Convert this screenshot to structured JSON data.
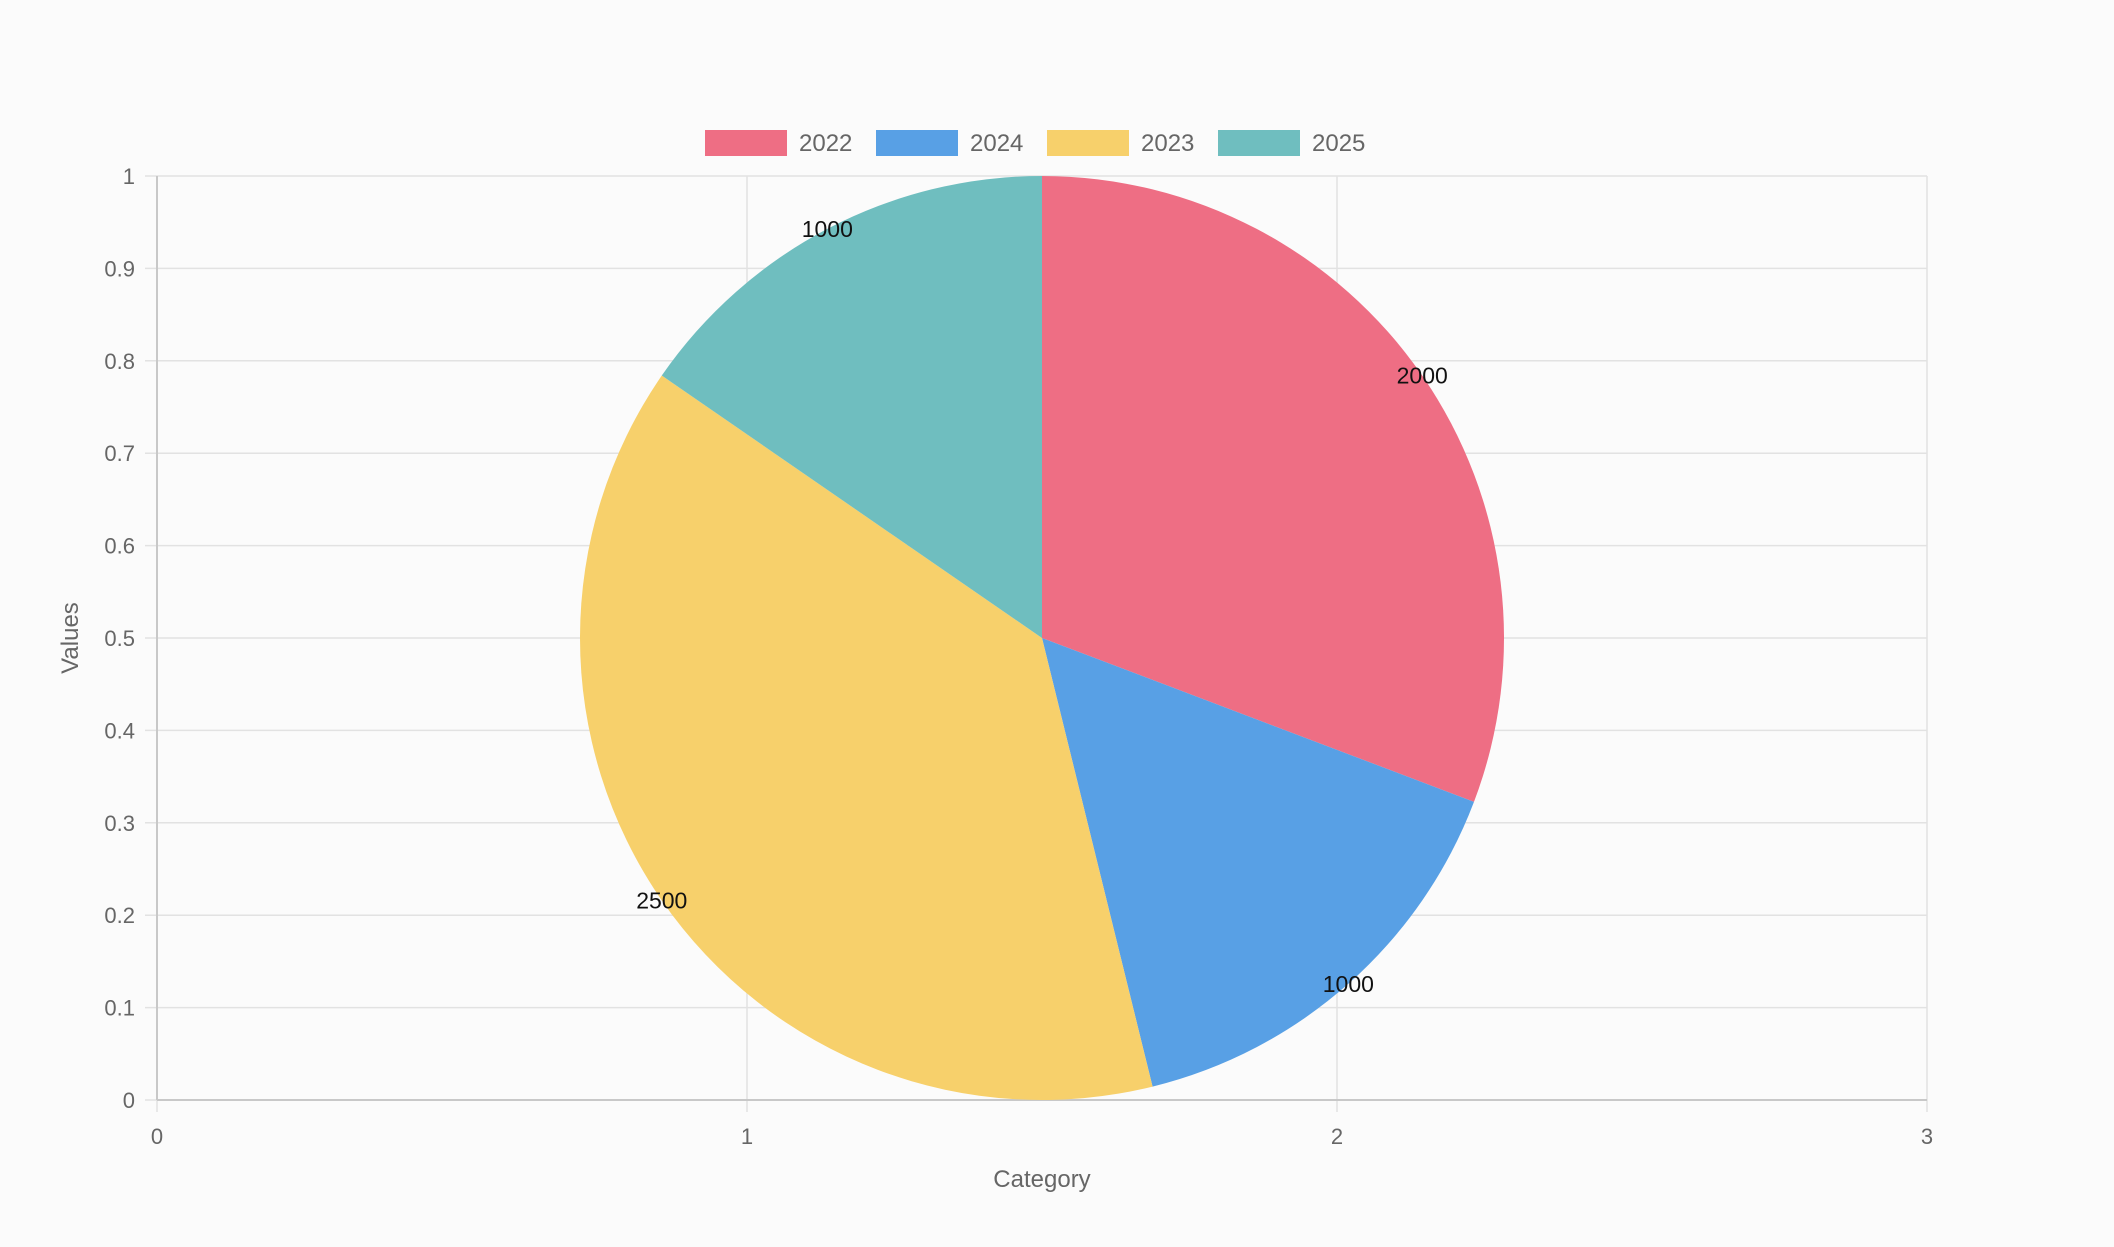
{
  "chart_data": {
    "type": "pie",
    "categories": [
      "2022",
      "2024",
      "2023",
      "2025"
    ],
    "values": [
      2000,
      1000,
      2500,
      1000
    ],
    "data_labels": [
      "2000",
      "1000",
      "2500",
      "1000"
    ],
    "colors": [
      "#ee6e84",
      "#58a0e5",
      "#f7d06b",
      "#6fbebf"
    ],
    "legend": {
      "position": "top",
      "items": [
        "2022",
        "2024",
        "2023",
        "2025"
      ]
    },
    "xlabel": "Category",
    "ylabel": "Values",
    "x_ticks": [
      "0",
      "1",
      "2",
      "3"
    ],
    "y_ticks": [
      "0",
      "0.1",
      "0.2",
      "0.3",
      "0.4",
      "0.5",
      "0.6",
      "0.7",
      "0.8",
      "0.9",
      "1"
    ],
    "xlim": [
      0,
      3
    ],
    "ylim": [
      0,
      1
    ],
    "grid": true,
    "colors_meta": {
      "grid": "#e2e2e2",
      "axis": "#c8c8c8",
      "tick_text": "#666666",
      "data_label_text": "#111111"
    }
  }
}
